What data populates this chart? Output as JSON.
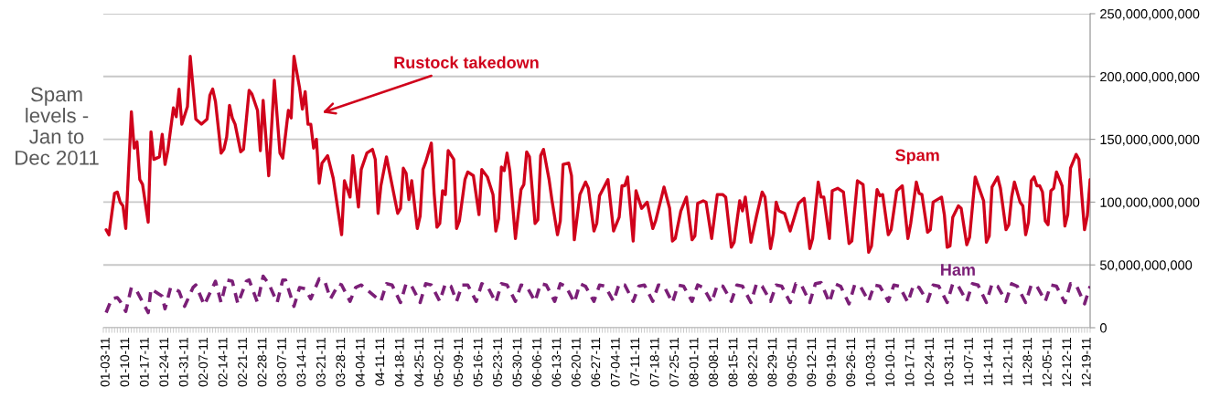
{
  "chart_data": {
    "type": "line",
    "title": "Spam levels - Jan to Dec 2011",
    "annotations": [
      "Rustock takedown"
    ],
    "xlim": [
      "2011-01-02",
      "2011-12-20"
    ],
    "xticks": [
      {
        "value": "2011-01-03",
        "label": "01-03-11"
      },
      {
        "value": "2011-01-10",
        "label": "01-10-11"
      },
      {
        "value": "2011-01-17",
        "label": "01-17-11"
      },
      {
        "value": "2011-01-24",
        "label": "01-24-11"
      },
      {
        "value": "2011-01-31",
        "label": "01-31-11"
      },
      {
        "value": "2011-02-07",
        "label": "02-07-11"
      },
      {
        "value": "2011-02-14",
        "label": "02-14-11"
      },
      {
        "value": "2011-02-21",
        "label": "02-21-11"
      },
      {
        "value": "2011-02-28",
        "label": "02-28-11"
      },
      {
        "value": "2011-03-07",
        "label": "03-07-11"
      },
      {
        "value": "2011-03-14",
        "label": "03-14-11"
      },
      {
        "value": "2011-03-21",
        "label": "03-21-11"
      },
      {
        "value": "2011-03-28",
        "label": "03-28-11"
      },
      {
        "value": "2011-04-04",
        "label": "04-04-11"
      },
      {
        "value": "2011-04-11",
        "label": "04-11-11"
      },
      {
        "value": "2011-04-18",
        "label": "04-18-11"
      },
      {
        "value": "2011-04-25",
        "label": "04-25-11"
      },
      {
        "value": "2011-05-02",
        "label": "05-02-11"
      },
      {
        "value": "2011-05-09",
        "label": "05-09-11"
      },
      {
        "value": "2011-05-16",
        "label": "05-16-11"
      },
      {
        "value": "2011-05-23",
        "label": "05-23-11"
      },
      {
        "value": "2011-05-30",
        "label": "05-30-11"
      },
      {
        "value": "2011-06-06",
        "label": "06-06-11"
      },
      {
        "value": "2011-06-13",
        "label": "06-13-11"
      },
      {
        "value": "2011-06-20",
        "label": "06-20-11"
      },
      {
        "value": "2011-06-27",
        "label": "06-27-11"
      },
      {
        "value": "2011-07-04",
        "label": "07-04-11"
      },
      {
        "value": "2011-07-11",
        "label": "07-11-11"
      },
      {
        "value": "2011-07-18",
        "label": "07-18-11"
      },
      {
        "value": "2011-07-25",
        "label": "07-25-11"
      },
      {
        "value": "2011-08-01",
        "label": "08-01-11"
      },
      {
        "value": "2011-08-08",
        "label": "08-08-11"
      },
      {
        "value": "2011-08-15",
        "label": "08-15-11"
      },
      {
        "value": "2011-08-22",
        "label": "08-22-11"
      },
      {
        "value": "2011-08-29",
        "label": "08-29-11"
      },
      {
        "value": "2011-09-05",
        "label": "09-05-11"
      },
      {
        "value": "2011-09-12",
        "label": "09-12-11"
      },
      {
        "value": "2011-09-19",
        "label": "09-19-11"
      },
      {
        "value": "2011-09-26",
        "label": "09-26-11"
      },
      {
        "value": "2011-10-03",
        "label": "10-03-11"
      },
      {
        "value": "2011-10-10",
        "label": "10-10-11"
      },
      {
        "value": "2011-10-17",
        "label": "10-17-11"
      },
      {
        "value": "2011-10-24",
        "label": "10-24-11"
      },
      {
        "value": "2011-10-31",
        "label": "10-31-11"
      },
      {
        "value": "2011-11-07",
        "label": "11-07-11"
      },
      {
        "value": "2011-11-14",
        "label": "11-14-11"
      },
      {
        "value": "2011-11-21",
        "label": "11-21-11"
      },
      {
        "value": "2011-11-28",
        "label": "11-28-11"
      },
      {
        "value": "2011-12-05",
        "label": "12-05-11"
      },
      {
        "value": "2011-12-12",
        "label": "12-12-11"
      },
      {
        "value": "2011-12-19",
        "label": "12-19-11"
      }
    ],
    "ylim": [
      0,
      250000000000.0
    ],
    "yticks": [
      0,
      {
        "value": 50000000000.0,
        "label": "50,000,000,000"
      },
      {
        "value": 100000000000.0,
        "label": "100,000,000,000"
      },
      {
        "value": 150000000000.0,
        "label": "150,000,000,000"
      },
      {
        "value": 200000000000.0,
        "label": "200,000,000,000"
      },
      {
        "value": 250000000000.0,
        "label": "250,000,000,000"
      }
    ],
    "grid": "y",
    "legend": false,
    "marker": "none",
    "series": [
      {
        "name": "Spam",
        "color": "#d0021b",
        "line_style": "solid",
        "x": [
          "2011-01-03",
          "2011-01-04",
          "2011-01-06",
          "2011-01-07",
          "2011-01-08",
          "2011-01-09",
          "2011-01-10",
          "2011-01-12",
          "2011-01-13",
          "2011-01-14",
          "2011-01-15",
          "2011-01-16",
          "2011-01-18",
          "2011-01-19",
          "2011-01-20",
          "2011-01-22",
          "2011-01-23",
          "2011-01-24",
          "2011-01-25",
          "2011-01-27",
          "2011-01-28",
          "2011-01-29",
          "2011-01-30",
          "2011-02-01",
          "2011-02-02",
          "2011-02-04",
          "2011-02-06",
          "2011-02-08",
          "2011-02-09",
          "2011-02-10",
          "2011-02-11",
          "2011-02-13",
          "2011-02-14",
          "2011-02-15",
          "2011-02-16",
          "2011-02-17",
          "2011-02-18",
          "2011-02-20",
          "2011-02-21",
          "2011-02-23",
          "2011-02-24",
          "2011-02-26",
          "2011-02-27",
          "2011-02-28",
          "2011-03-02",
          "2011-03-04",
          "2011-03-06",
          "2011-03-07",
          "2011-03-09",
          "2011-03-10",
          "2011-03-11",
          "2011-03-13",
          "2011-03-14",
          "2011-03-15",
          "2011-03-16",
          "2011-03-17",
          "2011-03-18",
          "2011-03-19",
          "2011-03-20",
          "2011-03-21",
          "2011-03-23",
          "2011-03-25",
          "2011-03-28",
          "2011-03-29",
          "2011-03-31",
          "2011-04-01",
          "2011-04-03",
          "2011-04-04",
          "2011-04-06",
          "2011-04-08",
          "2011-04-09",
          "2011-04-10",
          "2011-04-11",
          "2011-04-13",
          "2011-04-17",
          "2011-04-18",
          "2011-04-19",
          "2011-04-20",
          "2011-04-21",
          "2011-04-22",
          "2011-04-24",
          "2011-04-25",
          "2011-04-26",
          "2011-04-27",
          "2011-04-29",
          "2011-04-30",
          "2011-05-01",
          "2011-05-02",
          "2011-05-03",
          "2011-05-04",
          "2011-05-05",
          "2011-05-07",
          "2011-05-08",
          "2011-05-09",
          "2011-05-11",
          "2011-05-12",
          "2011-05-14",
          "2011-05-16",
          "2011-05-17",
          "2011-05-19",
          "2011-05-21",
          "2011-05-22",
          "2011-05-23",
          "2011-05-24",
          "2011-05-25",
          "2011-05-26",
          "2011-05-27",
          "2011-05-29",
          "2011-05-31",
          "2011-06-01",
          "2011-06-02",
          "2011-06-03",
          "2011-06-05",
          "2011-06-06",
          "2011-06-07",
          "2011-06-08",
          "2011-06-10",
          "2011-06-11",
          "2011-06-13",
          "2011-06-14",
          "2011-06-15",
          "2011-06-17",
          "2011-06-18",
          "2011-06-19",
          "2011-06-21",
          "2011-06-23",
          "2011-06-24",
          "2011-06-26",
          "2011-06-27",
          "2011-06-28",
          "2011-07-01",
          "2011-07-03",
          "2011-07-05",
          "2011-07-06",
          "2011-07-07",
          "2011-07-08",
          "2011-07-10",
          "2011-07-11",
          "2011-07-13",
          "2011-07-15",
          "2011-07-17",
          "2011-07-18",
          "2011-07-21",
          "2011-07-23",
          "2011-07-24",
          "2011-07-25",
          "2011-07-27",
          "2011-07-29",
          "2011-07-31",
          "2011-08-01",
          "2011-08-02",
          "2011-08-04",
          "2011-08-05",
          "2011-08-07",
          "2011-08-09",
          "2011-08-11",
          "2011-08-12",
          "2011-08-14",
          "2011-08-15",
          "2011-08-17",
          "2011-08-18",
          "2011-08-19",
          "2011-08-21",
          "2011-08-23",
          "2011-08-25",
          "2011-08-26",
          "2011-08-28",
          "2011-08-29",
          "2011-08-30",
          "2011-08-31",
          "2011-09-02",
          "2011-09-04",
          "2011-09-07",
          "2011-09-09",
          "2011-09-11",
          "2011-09-12",
          "2011-09-14",
          "2011-09-15",
          "2011-09-16",
          "2011-09-18",
          "2011-09-19",
          "2011-09-21",
          "2011-09-23",
          "2011-09-25",
          "2011-09-26",
          "2011-09-28",
          "2011-09-30",
          "2011-10-02",
          "2011-10-03",
          "2011-10-05",
          "2011-10-06",
          "2011-10-07",
          "2011-10-09",
          "2011-10-10",
          "2011-10-12",
          "2011-10-14",
          "2011-10-16",
          "2011-10-17",
          "2011-10-19",
          "2011-10-20",
          "2011-10-21",
          "2011-10-23",
          "2011-10-24",
          "2011-10-25",
          "2011-10-28",
          "2011-10-29",
          "2011-10-30",
          "2011-10-31",
          "2011-11-01",
          "2011-11-03",
          "2011-11-04",
          "2011-11-06",
          "2011-11-07",
          "2011-11-09",
          "2011-11-12",
          "2011-11-13",
          "2011-11-14",
          "2011-11-15",
          "2011-11-17",
          "2011-11-18",
          "2011-11-20",
          "2011-11-21",
          "2011-11-22",
          "2011-11-23",
          "2011-11-25",
          "2011-11-26",
          "2011-11-27",
          "2011-11-28",
          "2011-11-29",
          "2011-11-30",
          "2011-12-01",
          "2011-12-02",
          "2011-12-03",
          "2011-12-04",
          "2011-12-05",
          "2011-12-06",
          "2011-12-07",
          "2011-12-08",
          "2011-12-10",
          "2011-12-11",
          "2011-12-12",
          "2011-12-13",
          "2011-12-15",
          "2011-12-16",
          "2011-12-18",
          "2011-12-19",
          "2011-12-20"
        ],
        "values": [
          78000000000.0,
          74000000000.0,
          107000000000.0,
          108000000000.0,
          100000000000.0,
          97000000000.0,
          79000000000.0,
          172000000000.0,
          143000000000.0,
          148000000000.0,
          118000000000.0,
          114000000000.0,
          84000000000.0,
          156000000000.0,
          134000000000.0,
          136000000000.0,
          154000000000.0,
          130000000000.0,
          141000000000.0,
          175000000000.0,
          168000000000.0,
          190000000000.0,
          162000000000.0,
          176000000000.0,
          216000000000.0,
          166000000000.0,
          162000000000.0,
          166000000000.0,
          185000000000.0,
          190000000000.0,
          180000000000.0,
          139000000000.0,
          142000000000.0,
          152000000000.0,
          177000000000.0,
          167000000000.0,
          162000000000.0,
          140000000000.0,
          142000000000.0,
          189000000000.0,
          186000000000.0,
          173000000000.0,
          141000000000.0,
          181000000000.0,
          121000000000.0,
          197000000000.0,
          139000000000.0,
          135000000000.0,
          173000000000.0,
          167000000000.0,
          216000000000.0,
          191000000000.0,
          174000000000.0,
          188000000000.0,
          162000000000.0,
          162000000000.0,
          143000000000.0,
          150000000000.0,
          115000000000.0,
          131000000000.0,
          137000000000.0,
          119000000000.0,
          74000000000.0,
          117000000000.0,
          104000000000.0,
          137000000000.0,
          96000000000.0,
          126000000000.0,
          139000000000.0,
          142000000000.0,
          134000000000.0,
          91000000000.0,
          113000000000.0,
          136000000000.0,
          91000000000.0,
          95000000000.0,
          127000000000.0,
          123000000000.0,
          102000000000.0,
          117000000000.0,
          79000000000.0,
          89000000000.0,
          126000000000.0,
          132000000000.0,
          147000000000.0,
          107000000000.0,
          80000000000.0,
          83000000000.0,
          109000000000.0,
          106000000000.0,
          141000000000.0,
          134000000000.0,
          79000000000.0,
          85000000000.0,
          118000000000.0,
          124000000000.0,
          121000000000.0,
          90000000000.0,
          126000000000.0,
          120000000000.0,
          106000000000.0,
          77000000000.0,
          87000000000.0,
          128000000000.0,
          125000000000.0,
          139000000000.0,
          125000000000.0,
          71000000000.0,
          110000000000.0,
          114000000000.0,
          140000000000.0,
          136000000000.0,
          83000000000.0,
          86000000000.0,
          137000000000.0,
          142000000000.0,
          118000000000.0,
          102000000000.0,
          74000000000.0,
          85000000000.0,
          130000000000.0,
          131000000000.0,
          121000000000.0,
          70000000000.0,
          106000000000.0,
          116000000000.0,
          111000000000.0,
          77000000000.0,
          83000000000.0,
          105000000000.0,
          118000000000.0,
          77000000000.0,
          88000000000.0,
          113000000000.0,
          113000000000.0,
          120000000000.0,
          69000000000.0,
          109000000000.0,
          95000000000.0,
          100000000000.0,
          79000000000.0,
          85000000000.0,
          112000000000.0,
          95000000000.0,
          69000000000.0,
          71000000000.0,
          93000000000.0,
          104000000000.0,
          70000000000.0,
          73000000000.0,
          99000000000.0,
          101000000000.0,
          100000000000.0,
          71000000000.0,
          106000000000.0,
          106000000000.0,
          104000000000.0,
          64000000000.0,
          68000000000.0,
          101000000000.0,
          93000000000.0,
          104000000000.0,
          68000000000.0,
          89000000000.0,
          108000000000.0,
          104000000000.0,
          63000000000.0,
          75000000000.0,
          100000000000.0,
          93000000000.0,
          91000000000.0,
          77000000000.0,
          99000000000.0,
          103000000000.0,
          63000000000.0,
          71000000000.0,
          116000000000.0,
          104000000000.0,
          104000000000.0,
          71000000000.0,
          109000000000.0,
          111000000000.0,
          108000000000.0,
          67000000000.0,
          69000000000.0,
          117000000000.0,
          114000000000.0,
          60000000000.0,
          65000000000.0,
          110000000000.0,
          105000000000.0,
          106000000000.0,
          74000000000.0,
          78000000000.0,
          109000000000.0,
          113000000000.0,
          71000000000.0,
          83000000000.0,
          116000000000.0,
          107000000000.0,
          106000000000.0,
          76000000000.0,
          78000000000.0,
          100000000000.0,
          104000000000.0,
          90000000000.0,
          64000000000.0,
          65000000000.0,
          88000000000.0,
          97000000000.0,
          95000000000.0,
          66000000000.0,
          72000000000.0,
          120000000000.0,
          101000000000.0,
          68000000000.0,
          73000000000.0,
          112000000000.0,
          120000000000.0,
          111000000000.0,
          78000000000.0,
          82000000000.0,
          104000000000.0,
          116000000000.0,
          100000000000.0,
          97000000000.0,
          74000000000.0,
          84000000000.0,
          117000000000.0,
          120000000000.0,
          113000000000.0,
          113000000000.0,
          108000000000.0,
          85000000000.0,
          82000000000.0,
          109000000000.0,
          111000000000.0,
          124000000000.0,
          113000000000.0,
          81000000000.0,
          90000000000.0,
          127000000000.0,
          138000000000.0,
          134000000000.0,
          78000000000.0,
          89000000000.0,
          118000000000.0
        ]
      },
      {
        "name": "Ham",
        "color": "#7b1f77",
        "line_style": "dashed",
        "x": [
          "2011-01-03",
          "2011-01-05",
          "2011-01-07",
          "2011-01-08",
          "2011-01-10",
          "2011-01-12",
          "2011-01-14",
          "2011-01-18",
          "2011-01-19",
          "2011-01-23",
          "2011-01-24",
          "2011-01-26",
          "2011-01-29",
          "2011-01-31",
          "2011-02-03",
          "2011-02-04",
          "2011-02-07",
          "2011-02-11",
          "2011-02-13",
          "2011-02-15",
          "2011-02-17",
          "2011-02-19",
          "2011-02-22",
          "2011-02-23",
          "2011-02-26",
          "2011-02-28",
          "2011-03-02",
          "2011-03-05",
          "2011-03-07",
          "2011-03-08",
          "2011-03-11",
          "2011-03-13",
          "2011-03-15",
          "2011-03-17",
          "2011-03-20",
          "2011-03-22",
          "2011-03-24",
          "2011-03-27",
          "2011-03-28",
          "2011-03-31",
          "2011-04-02",
          "2011-04-04",
          "2011-04-11",
          "2011-04-13",
          "2011-04-15",
          "2011-04-18",
          "2011-04-20",
          "2011-04-22",
          "2011-04-25",
          "2011-04-27",
          "2011-04-29",
          "2011-05-02",
          "2011-05-04",
          "2011-05-06",
          "2011-05-08",
          "2011-05-10",
          "2011-05-12",
          "2011-05-15",
          "2011-05-17",
          "2011-05-19",
          "2011-05-22",
          "2011-05-24",
          "2011-05-26",
          "2011-05-29",
          "2011-05-31",
          "2011-06-02",
          "2011-06-05",
          "2011-06-07",
          "2011-06-09",
          "2011-06-12",
          "2011-06-14",
          "2011-06-16",
          "2011-06-19",
          "2011-06-21",
          "2011-06-23",
          "2011-06-26",
          "2011-06-28",
          "2011-06-30",
          "2011-07-03",
          "2011-07-05",
          "2011-07-07",
          "2011-07-10",
          "2011-07-12",
          "2011-07-14",
          "2011-07-17",
          "2011-07-19",
          "2011-07-21",
          "2011-07-24",
          "2011-07-26",
          "2011-07-28",
          "2011-07-31",
          "2011-08-02",
          "2011-08-04",
          "2011-08-07",
          "2011-08-09",
          "2011-08-11",
          "2011-08-14",
          "2011-08-16",
          "2011-08-18",
          "2011-08-21",
          "2011-08-23",
          "2011-08-25",
          "2011-08-28",
          "2011-08-30",
          "2011-09-01",
          "2011-09-04",
          "2011-09-06",
          "2011-09-08",
          "2011-09-11",
          "2011-09-13",
          "2011-09-15",
          "2011-09-18",
          "2011-09-20",
          "2011-09-22",
          "2011-09-25",
          "2011-09-27",
          "2011-09-29",
          "2011-10-02",
          "2011-10-04",
          "2011-10-06",
          "2011-10-09",
          "2011-10-11",
          "2011-10-13",
          "2011-10-16",
          "2011-10-18",
          "2011-10-20",
          "2011-10-23",
          "2011-10-25",
          "2011-10-27",
          "2011-10-30",
          "2011-11-01",
          "2011-11-03",
          "2011-11-06",
          "2011-11-08",
          "2011-11-10",
          "2011-11-13",
          "2011-11-15",
          "2011-11-17",
          "2011-11-20",
          "2011-11-22",
          "2011-11-24",
          "2011-11-27",
          "2011-11-29",
          "2011-12-01",
          "2011-12-04",
          "2011-12-06",
          "2011-12-08",
          "2011-12-11",
          "2011-12-13",
          "2011-12-15",
          "2011-12-18",
          "2011-12-20"
        ],
        "values": [
          12000000000.0,
          23000000000.0,
          24000000000.0,
          21000000000.0,
          13000000000.0,
          32000000000.0,
          29000000000.0,
          12000000000.0,
          31000000000.0,
          25000000000.0,
          15000000000.0,
          32000000000.0,
          29000000000.0,
          17000000000.0,
          32000000000.0,
          34000000000.0,
          18000000000.0,
          37000000000.0,
          20000000000.0,
          38000000000.0,
          37000000000.0,
          19000000000.0,
          37000000000.0,
          38000000000.0,
          20000000000.0,
          41000000000.0,
          35000000000.0,
          20000000000.0,
          38000000000.0,
          38000000000.0,
          17000000000.0,
          32000000000.0,
          31000000000.0,
          23000000000.0,
          39000000000.0,
          37000000000.0,
          23000000000.0,
          35000000000.0,
          34000000000.0,
          21000000000.0,
          32000000000.0,
          34000000000.0,
          21000000000.0,
          35000000000.0,
          34000000000.0,
          20000000000.0,
          35000000000.0,
          33000000000.0,
          20000000000.0,
          35000000000.0,
          34000000000.0,
          21000000000.0,
          35000000000.0,
          33000000000.0,
          21000000000.0,
          34000000000.0,
          34000000000.0,
          21000000000.0,
          35000000000.0,
          33000000000.0,
          20000000000.0,
          35000000000.0,
          34000000000.0,
          21000000000.0,
          34000000000.0,
          33000000000.0,
          21000000000.0,
          35000000000.0,
          34000000000.0,
          21000000000.0,
          35000000000.0,
          33000000000.0,
          20000000000.0,
          35000000000.0,
          33000000000.0,
          21000000000.0,
          34000000000.0,
          33000000000.0,
          21000000000.0,
          35000000000.0,
          34000000000.0,
          21000000000.0,
          33000000000.0,
          34000000000.0,
          21000000000.0,
          34000000000.0,
          33000000000.0,
          20000000000.0,
          34000000000.0,
          33000000000.0,
          21000000000.0,
          34000000000.0,
          32000000000.0,
          20000000000.0,
          34000000000.0,
          33000000000.0,
          21000000000.0,
          34000000000.0,
          33000000000.0,
          20000000000.0,
          35000000000.0,
          33000000000.0,
          21000000000.0,
          34000000000.0,
          33000000000.0,
          20000000000.0,
          35000000000.0,
          34000000000.0,
          20000000000.0,
          35000000000.0,
          36000000000.0,
          20000000000.0,
          35000000000.0,
          33000000000.0,
          19000000000.0,
          34000000000.0,
          33000000000.0,
          21000000000.0,
          34000000000.0,
          33000000000.0,
          21000000000.0,
          34000000000.0,
          33000000000.0,
          20000000000.0,
          34000000000.0,
          32000000000.0,
          21000000000.0,
          34000000000.0,
          33000000000.0,
          20000000000.0,
          35000000000.0,
          33000000000.0,
          21000000000.0,
          35000000000.0,
          34000000000.0,
          20000000000.0,
          35000000000.0,
          33000000000.0,
          21000000000.0,
          35000000000.0,
          33000000000.0,
          20000000000.0,
          34000000000.0,
          33000000000.0,
          21000000000.0,
          34000000000.0,
          33000000000.0,
          20000000000.0,
          35000000000.0,
          34000000000.0,
          19000000000.0,
          33000000000.0
        ]
      }
    ]
  }
}
